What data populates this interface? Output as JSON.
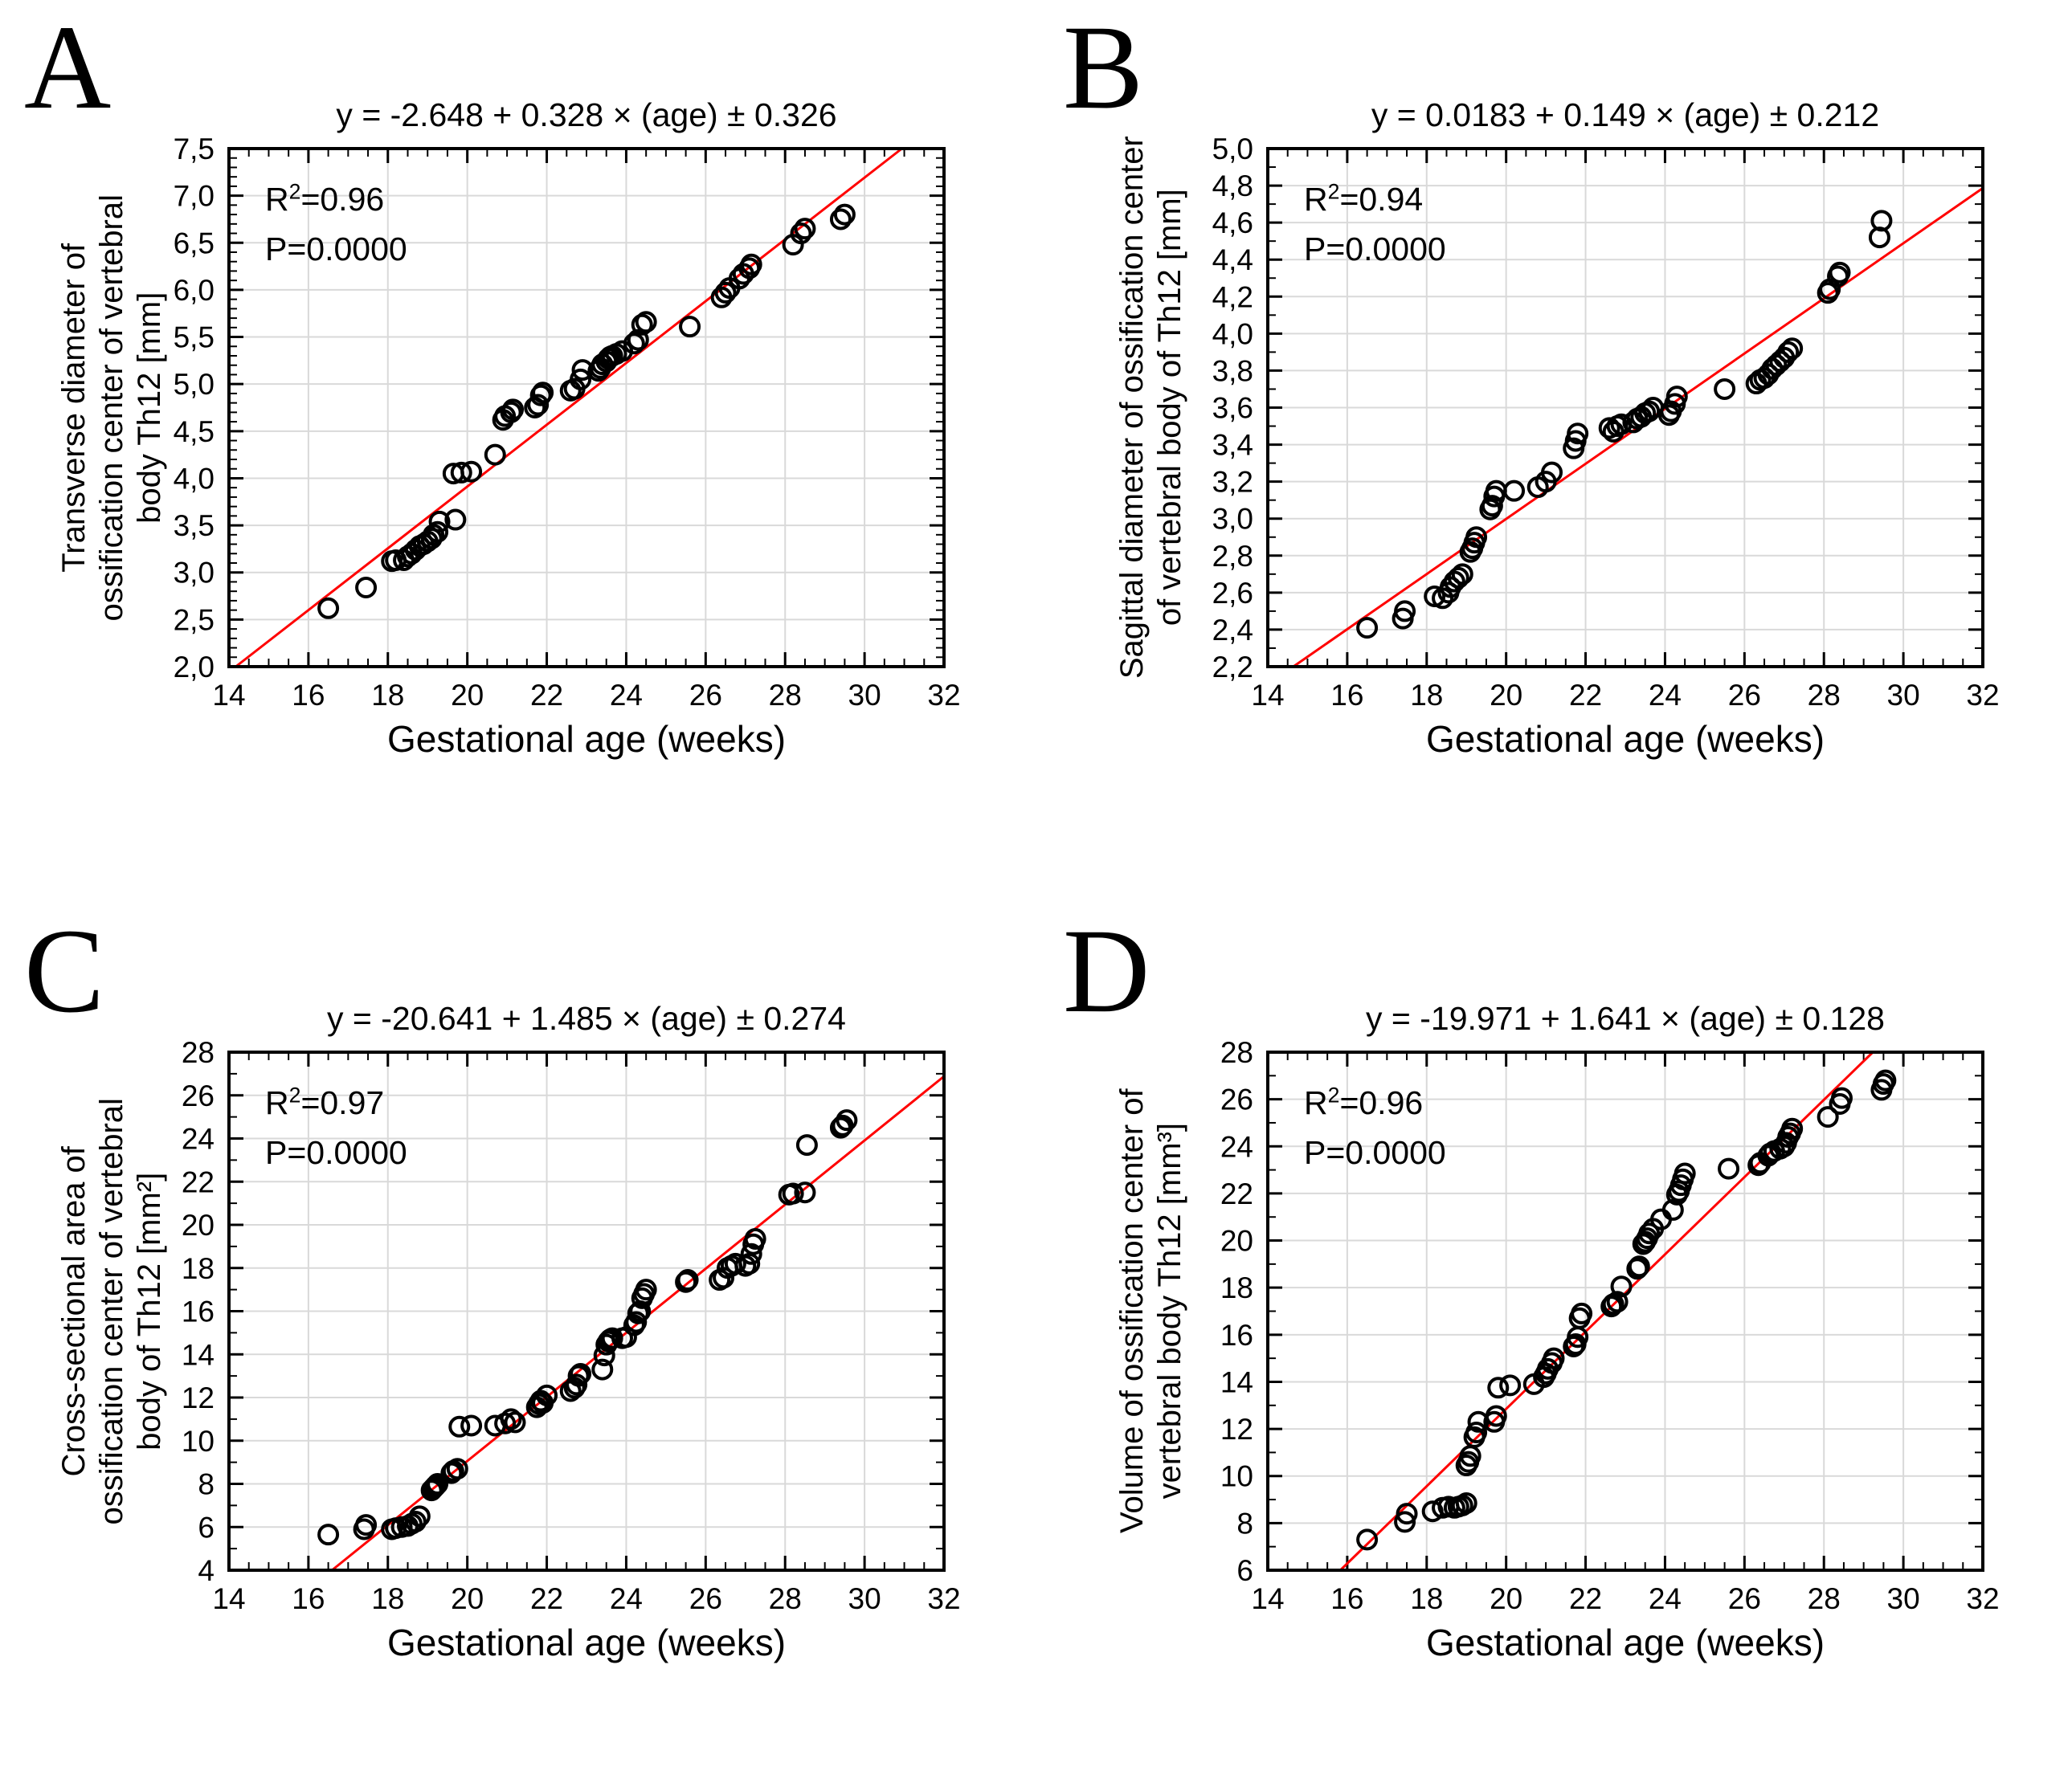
{
  "figure": {
    "panel_labels": [
      "A",
      "B",
      "C",
      "D"
    ],
    "background_color": "#ffffff",
    "grid_color": "#d9d9d9",
    "point_color": "#000000",
    "line_color": "#ff0000"
  },
  "chart_data": [
    {
      "type": "scatter",
      "panel_label": "A",
      "title": "y = -2.648 + 0.328 × (age) ± 0.326",
      "annotation": {
        "r2_label": "R",
        "r2_sup": "2",
        "r2_rest": "=0.96",
        "p_text": "P=0.0000"
      },
      "xlabel": "Gestational age (weeks)",
      "ylabel_lines": [
        "Transverse diameter of",
        "ossification center of vertebral",
        "body Th12 [mm]"
      ],
      "xlim": [
        14,
        32
      ],
      "xtick_step": 2,
      "x_minor_step": 0.5,
      "ylim": [
        2.0,
        7.5
      ],
      "ytick_step": 0.5,
      "y_minor_step": 0.1,
      "decimal_comma": true,
      "grid_on": true,
      "legend": "none",
      "grid_color": "#d9d9d9",
      "point_color": "#000000",
      "regression": {
        "intercept": -2.648,
        "slope": 0.328,
        "color": "#ff0000"
      },
      "points": [
        [
          16.5,
          2.62
        ],
        [
          17.45,
          2.84
        ],
        [
          18.1,
          3.12
        ],
        [
          18.2,
          3.13
        ],
        [
          18.4,
          3.13
        ],
        [
          18.5,
          3.17
        ],
        [
          18.6,
          3.2
        ],
        [
          18.7,
          3.24
        ],
        [
          18.8,
          3.28
        ],
        [
          18.9,
          3.3
        ],
        [
          19.0,
          3.33
        ],
        [
          19.1,
          3.36
        ],
        [
          19.15,
          3.4
        ],
        [
          19.25,
          3.43
        ],
        [
          19.3,
          3.54
        ],
        [
          19.7,
          3.56
        ],
        [
          19.65,
          4.05
        ],
        [
          19.85,
          4.06
        ],
        [
          20.1,
          4.07
        ],
        [
          20.7,
          4.25
        ],
        [
          20.9,
          4.62
        ],
        [
          20.95,
          4.66
        ],
        [
          21.1,
          4.7
        ],
        [
          21.15,
          4.73
        ],
        [
          21.7,
          4.75
        ],
        [
          21.78,
          4.78
        ],
        [
          21.85,
          4.88
        ],
        [
          21.9,
          4.91
        ],
        [
          22.6,
          4.93
        ],
        [
          22.7,
          4.95
        ],
        [
          22.85,
          5.05
        ],
        [
          22.9,
          5.15
        ],
        [
          23.3,
          5.14
        ],
        [
          23.35,
          5.17
        ],
        [
          23.4,
          5.21
        ],
        [
          23.5,
          5.24
        ],
        [
          23.55,
          5.27
        ],
        [
          23.6,
          5.29
        ],
        [
          23.65,
          5.3
        ],
        [
          23.75,
          5.32
        ],
        [
          23.9,
          5.35
        ],
        [
          24.2,
          5.43
        ],
        [
          24.3,
          5.47
        ],
        [
          24.4,
          5.63
        ],
        [
          24.5,
          5.66
        ],
        [
          25.6,
          5.61
        ],
        [
          26.4,
          5.92
        ],
        [
          26.5,
          5.97
        ],
        [
          26.6,
          6.02
        ],
        [
          26.85,
          6.12
        ],
        [
          26.95,
          6.17
        ],
        [
          27.1,
          6.23
        ],
        [
          27.15,
          6.27
        ],
        [
          28.2,
          6.48
        ],
        [
          28.4,
          6.6
        ],
        [
          28.5,
          6.65
        ],
        [
          29.4,
          6.75
        ],
        [
          29.5,
          6.8
        ]
      ]
    },
    {
      "type": "scatter",
      "panel_label": "B",
      "title": "y = 0.0183 + 0.149 × (age) ± 0.212",
      "annotation": {
        "r2_label": "R",
        "r2_sup": "2",
        "r2_rest": "=0.94",
        "p_text": "P=0.0000"
      },
      "xlabel": "Gestational age (weeks)",
      "ylabel_lines": [
        "Sagittal diameter of ossification center",
        "of vertebral body of Th12 [mm]"
      ],
      "xlim": [
        14,
        32
      ],
      "xtick_step": 2,
      "x_minor_step": 0.5,
      "ylim": [
        2.2,
        5.0
      ],
      "ytick_step": 0.2,
      "y_minor_step": 0.1,
      "decimal_comma": true,
      "grid_on": true,
      "legend": "none",
      "grid_color": "#d9d9d9",
      "point_color": "#000000",
      "regression": {
        "intercept": 0.0183,
        "slope": 0.149,
        "color": "#ff0000"
      },
      "points": [
        [
          16.5,
          2.41
        ],
        [
          17.4,
          2.46
        ],
        [
          17.45,
          2.5
        ],
        [
          18.2,
          2.58
        ],
        [
          18.4,
          2.57
        ],
        [
          18.55,
          2.6
        ],
        [
          18.6,
          2.63
        ],
        [
          18.7,
          2.66
        ],
        [
          18.8,
          2.68
        ],
        [
          18.9,
          2.7
        ],
        [
          19.1,
          2.82
        ],
        [
          19.15,
          2.84
        ],
        [
          19.2,
          2.87
        ],
        [
          19.25,
          2.9
        ],
        [
          19.6,
          3.05
        ],
        [
          19.65,
          3.07
        ],
        [
          19.7,
          3.12
        ],
        [
          19.75,
          3.15
        ],
        [
          20.2,
          3.15
        ],
        [
          20.8,
          3.17
        ],
        [
          21.0,
          3.2
        ],
        [
          21.15,
          3.25
        ],
        [
          21.7,
          3.38
        ],
        [
          21.75,
          3.42
        ],
        [
          21.8,
          3.46
        ],
        [
          22.6,
          3.49
        ],
        [
          22.7,
          3.47
        ],
        [
          22.8,
          3.5
        ],
        [
          22.9,
          3.51
        ],
        [
          23.2,
          3.52
        ],
        [
          23.3,
          3.54
        ],
        [
          23.4,
          3.55
        ],
        [
          23.5,
          3.57
        ],
        [
          23.6,
          3.58
        ],
        [
          23.7,
          3.6
        ],
        [
          24.1,
          3.56
        ],
        [
          24.15,
          3.58
        ],
        [
          24.25,
          3.62
        ],
        [
          24.3,
          3.66
        ],
        [
          25.5,
          3.7
        ],
        [
          26.3,
          3.73
        ],
        [
          26.4,
          3.75
        ],
        [
          26.5,
          3.76
        ],
        [
          26.6,
          3.78
        ],
        [
          26.7,
          3.81
        ],
        [
          26.8,
          3.83
        ],
        [
          26.9,
          3.85
        ],
        [
          27.0,
          3.87
        ],
        [
          27.1,
          3.9
        ],
        [
          27.2,
          3.92
        ],
        [
          28.1,
          4.22
        ],
        [
          28.15,
          4.24
        ],
        [
          28.35,
          4.31
        ],
        [
          28.4,
          4.33
        ],
        [
          29.4,
          4.52
        ],
        [
          29.45,
          4.61
        ]
      ]
    },
    {
      "type": "scatter",
      "panel_label": "C",
      "title": "y = -20.641 + 1.485 × (age) ± 0.274",
      "annotation": {
        "r2_label": "R",
        "r2_sup": "2",
        "r2_rest": "=0.97",
        "p_text": "P=0.0000"
      },
      "xlabel": "Gestational age (weeks)",
      "ylabel_lines": [
        "Cross-sectional area of",
        "ossification center of vertebral",
        "body of Th12 [mm²]"
      ],
      "xlim": [
        14,
        32
      ],
      "xtick_step": 2,
      "x_minor_step": 0.5,
      "ylim": [
        4,
        28
      ],
      "ytick_step": 2,
      "y_minor_step": 1,
      "decimal_comma": false,
      "grid_on": true,
      "legend": "none",
      "grid_color": "#d9d9d9",
      "point_color": "#000000",
      "regression": {
        "intercept": -20.641,
        "slope": 1.485,
        "color": "#ff0000"
      },
      "points": [
        [
          16.5,
          5.65
        ],
        [
          17.4,
          5.9
        ],
        [
          17.45,
          6.1
        ],
        [
          18.1,
          5.9
        ],
        [
          18.2,
          5.95
        ],
        [
          18.35,
          6.0
        ],
        [
          18.5,
          6.05
        ],
        [
          18.6,
          6.15
        ],
        [
          18.7,
          6.25
        ],
        [
          18.8,
          6.5
        ],
        [
          19.1,
          7.7
        ],
        [
          19.15,
          7.8
        ],
        [
          19.2,
          7.9
        ],
        [
          19.25,
          8.0
        ],
        [
          19.6,
          8.5
        ],
        [
          19.65,
          8.6
        ],
        [
          19.75,
          8.7
        ],
        [
          19.8,
          10.65
        ],
        [
          20.1,
          10.7
        ],
        [
          20.7,
          10.7
        ],
        [
          20.95,
          10.8
        ],
        [
          21.1,
          11.0
        ],
        [
          21.2,
          10.85
        ],
        [
          21.75,
          11.55
        ],
        [
          21.8,
          11.7
        ],
        [
          21.85,
          11.85
        ],
        [
          21.9,
          11.75
        ],
        [
          22.0,
          12.1
        ],
        [
          22.6,
          12.3
        ],
        [
          22.7,
          12.45
        ],
        [
          22.75,
          12.6
        ],
        [
          22.8,
          13.0
        ],
        [
          22.85,
          13.1
        ],
        [
          23.4,
          13.3
        ],
        [
          23.45,
          13.95
        ],
        [
          23.5,
          14.45
        ],
        [
          23.55,
          14.6
        ],
        [
          23.6,
          14.7
        ],
        [
          23.65,
          14.75
        ],
        [
          23.9,
          14.75
        ],
        [
          24.0,
          14.8
        ],
        [
          24.2,
          15.35
        ],
        [
          24.25,
          15.5
        ],
        [
          24.3,
          15.9
        ],
        [
          24.35,
          16.0
        ],
        [
          24.4,
          16.6
        ],
        [
          24.45,
          16.8
        ],
        [
          24.5,
          17.0
        ],
        [
          25.5,
          17.35
        ],
        [
          25.55,
          17.45
        ],
        [
          26.35,
          17.45
        ],
        [
          26.45,
          17.55
        ],
        [
          26.55,
          18.0
        ],
        [
          26.65,
          18.1
        ],
        [
          26.75,
          18.2
        ],
        [
          27.0,
          18.1
        ],
        [
          27.1,
          18.2
        ],
        [
          27.15,
          18.65
        ],
        [
          27.2,
          19.1
        ],
        [
          27.25,
          19.35
        ],
        [
          28.1,
          21.4
        ],
        [
          28.2,
          21.45
        ],
        [
          28.5,
          21.5
        ],
        [
          28.55,
          23.7
        ],
        [
          29.4,
          24.5
        ],
        [
          29.45,
          24.6
        ],
        [
          29.55,
          24.85
        ]
      ]
    },
    {
      "type": "scatter",
      "panel_label": "D",
      "title": "y = -19.971 + 1.641 × (age) ± 0.128",
      "annotation": {
        "r2_label": "R",
        "r2_sup": "2",
        "r2_rest": "=0.96",
        "p_text": "P=0.0000"
      },
      "xlabel": "Gestational age (weeks)",
      "ylabel_lines": [
        "Volume of ossification center of",
        "vertebral body Th12 [mm³]"
      ],
      "xlim": [
        14,
        32
      ],
      "xtick_step": 2,
      "x_minor_step": 0.5,
      "ylim": [
        6,
        28
      ],
      "ytick_step": 2,
      "y_minor_step": 1,
      "decimal_comma": false,
      "grid_on": true,
      "legend": "none",
      "grid_color": "#d9d9d9",
      "point_color": "#000000",
      "regression": {
        "intercept": -19.971,
        "slope": 1.641,
        "color": "#ff0000"
      },
      "points": [
        [
          16.5,
          7.3
        ],
        [
          17.45,
          8.05
        ],
        [
          17.5,
          8.4
        ],
        [
          18.15,
          8.5
        ],
        [
          18.4,
          8.65
        ],
        [
          18.55,
          8.7
        ],
        [
          18.7,
          8.65
        ],
        [
          18.8,
          8.7
        ],
        [
          18.9,
          8.75
        ],
        [
          19.0,
          8.85
        ],
        [
          19.0,
          10.45
        ],
        [
          19.05,
          10.6
        ],
        [
          19.1,
          10.85
        ],
        [
          19.2,
          11.65
        ],
        [
          19.25,
          11.85
        ],
        [
          19.3,
          12.3
        ],
        [
          19.7,
          12.3
        ],
        [
          19.75,
          12.55
        ],
        [
          19.8,
          13.75
        ],
        [
          20.1,
          13.85
        ],
        [
          20.7,
          13.9
        ],
        [
          20.95,
          14.2
        ],
        [
          21.0,
          14.35
        ],
        [
          21.05,
          14.55
        ],
        [
          21.15,
          14.8
        ],
        [
          21.2,
          15.0
        ],
        [
          21.7,
          15.5
        ],
        [
          21.75,
          15.6
        ],
        [
          21.8,
          15.9
        ],
        [
          21.85,
          16.7
        ],
        [
          21.9,
          16.9
        ],
        [
          22.65,
          17.2
        ],
        [
          22.7,
          17.3
        ],
        [
          22.8,
          17.4
        ],
        [
          22.9,
          18.05
        ],
        [
          23.3,
          18.8
        ],
        [
          23.35,
          18.9
        ],
        [
          23.45,
          19.85
        ],
        [
          23.5,
          19.95
        ],
        [
          23.55,
          20.1
        ],
        [
          23.6,
          20.3
        ],
        [
          23.7,
          20.5
        ],
        [
          23.9,
          20.9
        ],
        [
          24.2,
          21.3
        ],
        [
          24.3,
          21.95
        ],
        [
          24.35,
          22.1
        ],
        [
          24.4,
          22.35
        ],
        [
          24.45,
          22.6
        ],
        [
          24.5,
          22.85
        ],
        [
          25.6,
          23.05
        ],
        [
          26.35,
          23.2
        ],
        [
          26.4,
          23.3
        ],
        [
          26.6,
          23.6
        ],
        [
          26.65,
          23.7
        ],
        [
          26.75,
          23.8
        ],
        [
          26.9,
          23.9
        ],
        [
          27.0,
          24.0
        ],
        [
          27.05,
          24.15
        ],
        [
          27.1,
          24.4
        ],
        [
          27.15,
          24.55
        ],
        [
          27.2,
          24.75
        ],
        [
          28.1,
          25.25
        ],
        [
          28.4,
          25.8
        ],
        [
          28.45,
          26.05
        ],
        [
          29.45,
          26.4
        ],
        [
          29.5,
          26.65
        ],
        [
          29.55,
          26.8
        ]
      ]
    }
  ]
}
